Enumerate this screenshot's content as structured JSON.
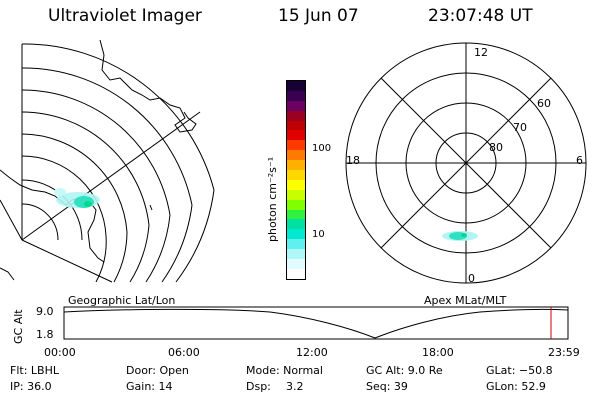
{
  "header": {
    "title": "Ultraviolet Imager",
    "date": "15 Jun 07",
    "time": "23:07:48 UT"
  },
  "left_panel": {
    "label": "Geographic Lat/Lon"
  },
  "right_panel": {
    "label": "Apex  MLat/MLT",
    "mlt_labels": {
      "top": "12",
      "left": "18",
      "right": "6",
      "bottom": "0"
    },
    "lat_labels": [
      "60",
      "70",
      "80"
    ]
  },
  "colorbar": {
    "unit_label": "photon cm⁻²s⁻¹",
    "ticks": [
      "100",
      "10"
    ],
    "colors": [
      "#160034",
      "#3a0050",
      "#6a0060",
      "#9a0020",
      "#c00000",
      "#e00000",
      "#ff3a00",
      "#ff7a00",
      "#ffb000",
      "#ffd800",
      "#ffff00",
      "#c8ff00",
      "#80ff00",
      "#30f040",
      "#00e0a0",
      "#00e8d0",
      "#60f0f0",
      "#b0f8f8",
      "#e0fcfc",
      "#ffffff"
    ]
  },
  "timeline": {
    "ylabel": "GC Alt",
    "y_ticks": [
      "9.0",
      "1.8"
    ],
    "x_ticks": [
      "00:00",
      "06:00",
      "12:00",
      "18:00",
      "23:59"
    ],
    "marker_color": "#cc0000"
  },
  "footer": {
    "row1": {
      "flt": "Flt: LBHL",
      "door": "Door: Open",
      "mode": "Mode: Normal",
      "gcalt": "GC Alt: 9.0 Re",
      "glat": "GLat: −50.8"
    },
    "row2": {
      "ip": "IP: 36.0",
      "gain": "Gain: 14",
      "dsp_label": "Dsp:",
      "dsp_value": "3.2",
      "seq": "Seq: 39",
      "glon": "GLon:  52.9"
    }
  }
}
